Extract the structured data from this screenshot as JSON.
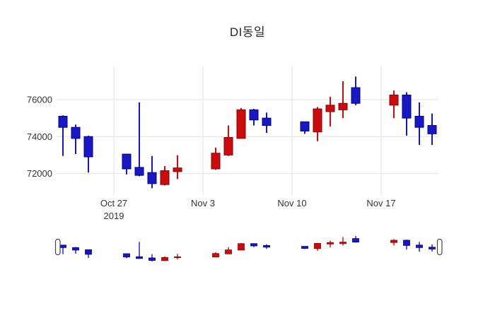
{
  "title": "DI동일",
  "colors": {
    "increasing": "#CC0C0C",
    "increasing_border": "#8B0000",
    "decreasing": "#1717C4",
    "decreasing_border": "#00008B",
    "gridline": "#E8E8E8",
    "tick_text": "#333333",
    "title_text": "#262626",
    "background": "#FFFFFF",
    "slider_handle_border": "#444444"
  },
  "y_axis": {
    "ticks": [
      {
        "value": 76000,
        "label": "76000"
      },
      {
        "value": 74000,
        "label": "74000"
      },
      {
        "value": 72000,
        "label": "72000"
      }
    ]
  },
  "x_axis": {
    "ticks": [
      {
        "date": "2019-10-27",
        "label": "Oct 27",
        "sublabel": "2019"
      },
      {
        "date": "2019-11-03",
        "label": "Nov 3",
        "sublabel": ""
      },
      {
        "date": "2019-11-10",
        "label": "Nov 10",
        "sublabel": ""
      },
      {
        "date": "2019-11-17",
        "label": "Nov 17",
        "sublabel": ""
      }
    ]
  },
  "chart_data": {
    "type": "candlestick",
    "title": "DI동일",
    "xlabel": "",
    "ylabel": "",
    "grid": true,
    "rangeslider": true,
    "x_range": [
      "2019-10-22",
      "2019-11-22"
    ],
    "y_range": [
      70900,
      77800
    ],
    "up_color_meaning": "close greater than open (red, Korean convention)",
    "down_color_meaning": "close less than open (blue)",
    "series": [
      {
        "date": "2019-10-23",
        "open": 75100,
        "high": 75150,
        "low": 72950,
        "close": 74500
      },
      {
        "date": "2019-10-24",
        "open": 74500,
        "high": 74650,
        "low": 73050,
        "close": 73900
      },
      {
        "date": "2019-10-25",
        "open": 74000,
        "high": 74050,
        "low": 72050,
        "close": 72900
      },
      {
        "date": "2019-10-28",
        "open": 73050,
        "high": 73050,
        "low": 71950,
        "close": 72250
      },
      {
        "date": "2019-10-29",
        "open": 72330,
        "high": 75850,
        "low": 71850,
        "close": 71900
      },
      {
        "date": "2019-10-30",
        "open": 72050,
        "high": 72950,
        "low": 71200,
        "close": 71450
      },
      {
        "date": "2019-10-31",
        "open": 71400,
        "high": 72400,
        "low": 71350,
        "close": 72150
      },
      {
        "date": "2019-11-01",
        "open": 72100,
        "high": 72990,
        "low": 71700,
        "close": 72300
      },
      {
        "date": "2019-11-04",
        "open": 72250,
        "high": 73400,
        "low": 72200,
        "close": 73100
      },
      {
        "date": "2019-11-05",
        "open": 73000,
        "high": 74600,
        "low": 72950,
        "close": 73950
      },
      {
        "date": "2019-11-06",
        "open": 73900,
        "high": 75550,
        "low": 73900,
        "close": 75450
      },
      {
        "date": "2019-11-07",
        "open": 75450,
        "high": 75500,
        "low": 74600,
        "close": 74900
      },
      {
        "date": "2019-11-08",
        "open": 75000,
        "high": 75300,
        "low": 74200,
        "close": 74600
      },
      {
        "date": "2019-11-11",
        "open": 74800,
        "high": 74800,
        "low": 74150,
        "close": 74300
      },
      {
        "date": "2019-11-12",
        "open": 74250,
        "high": 75600,
        "low": 73750,
        "close": 75500
      },
      {
        "date": "2019-11-13",
        "open": 75350,
        "high": 76150,
        "low": 74550,
        "close": 75700
      },
      {
        "date": "2019-11-14",
        "open": 75450,
        "high": 77000,
        "low": 75000,
        "close": 75800
      },
      {
        "date": "2019-11-15",
        "open": 76650,
        "high": 77250,
        "low": 75700,
        "close": 75800
      },
      {
        "date": "2019-11-18",
        "open": 75700,
        "high": 76500,
        "low": 75000,
        "close": 76250
      },
      {
        "date": "2019-11-19",
        "open": 76250,
        "high": 76400,
        "low": 74050,
        "close": 75000
      },
      {
        "date": "2019-11-20",
        "open": 75100,
        "high": 75850,
        "low": 73550,
        "close": 74500
      },
      {
        "date": "2019-11-21",
        "open": 74600,
        "high": 75250,
        "low": 73550,
        "close": 74150
      }
    ]
  }
}
